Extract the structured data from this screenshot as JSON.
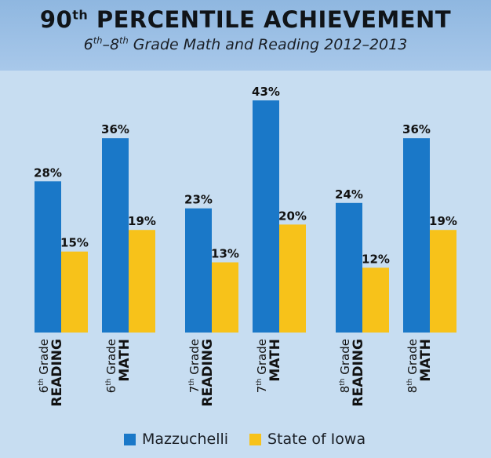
{
  "header": {
    "title_prefix": "90",
    "title_sup": "th",
    "title_rest": " PERCENTILE ACHIEVEMENT",
    "subtitle_a": "6",
    "subtitle_a_sup": "th",
    "subtitle_b": "–8",
    "subtitle_b_sup": "th",
    "subtitle_rest": " Grade Math and Reading 2012–2013"
  },
  "colors": {
    "mazzuchelli": "#1a78c8",
    "iowa": "#f7c21a",
    "background": "#c7ddf1",
    "header": "#9cc0e6"
  },
  "chart_data": {
    "type": "bar",
    "title": "90th PERCENTILE ACHIEVEMENT",
    "subtitle": "6th–8th Grade Math and Reading 2012–2013",
    "categories": [
      {
        "grade": "6",
        "sup": "th",
        "word": "Grade",
        "subject": "READING"
      },
      {
        "grade": "6",
        "sup": "th",
        "word": "Grade",
        "subject": "MATH"
      },
      {
        "grade": "7",
        "sup": "th",
        "word": "Grade",
        "subject": "READING"
      },
      {
        "grade": "7",
        "sup": "th",
        "word": "Grade",
        "subject": "MATH"
      },
      {
        "grade": "8",
        "sup": "th",
        "word": "Grade",
        "subject": "READING"
      },
      {
        "grade": "8",
        "sup": "th",
        "word": "Grade",
        "subject": "MATH"
      }
    ],
    "series": [
      {
        "name": "Mazzuchelli",
        "values": [
          28,
          36,
          23,
          43,
          24,
          36
        ],
        "labels": [
          "28%",
          "36%",
          "23%",
          "43%",
          "24%",
          "36%"
        ]
      },
      {
        "name": "State of Iowa",
        "values": [
          15,
          19,
          13,
          20,
          12,
          19
        ],
        "labels": [
          "15%",
          "19%",
          "13%",
          "20%",
          "12%",
          "19%"
        ]
      }
    ],
    "unit": "%",
    "ylim": [
      0,
      43
    ],
    "grid": false,
    "legend_position": "bottom"
  }
}
